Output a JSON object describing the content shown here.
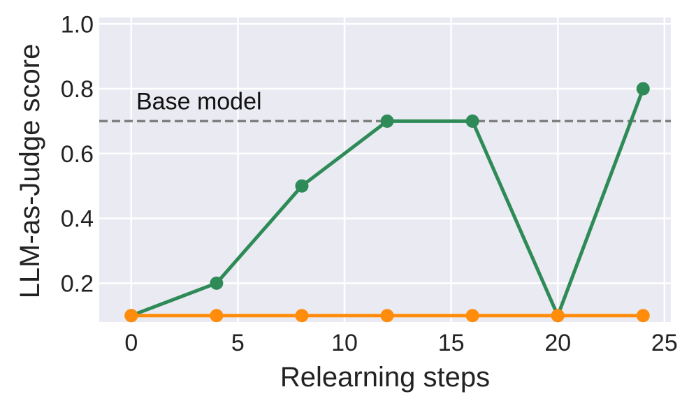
{
  "chart_data": {
    "type": "line",
    "xlabel": "Relearning steps",
    "ylabel": "LLM-as-Judge score",
    "xlim": [
      -1.5,
      25.3
    ],
    "ylim": [
      0.08,
      1.02
    ],
    "xticks": [
      0,
      5,
      10,
      15,
      20,
      25
    ],
    "yticks": [
      0.2,
      0.4,
      0.6,
      0.8,
      1.0
    ],
    "xtick_labels": [
      "0",
      "5",
      "10",
      "15",
      "20",
      "25"
    ],
    "ytick_labels": [
      "0.2",
      "0.4",
      "0.6",
      "0.8",
      "1.0"
    ],
    "grid": true,
    "x": [
      0,
      4,
      8,
      12,
      16,
      20,
      24
    ],
    "series": [
      {
        "values": [
          0.1,
          0.2,
          0.5,
          0.7,
          0.7,
          0.1,
          0.8
        ],
        "color": "#2e8b57"
      },
      {
        "values": [
          0.1,
          0.1,
          0.1,
          0.1,
          0.1,
          0.1,
          0.1
        ],
        "color": "#ff8c0a"
      }
    ],
    "reference_line": {
      "y": 0.7,
      "label": "Base model",
      "color": "#808080",
      "style": "dashed"
    },
    "background": "#eaeaf2"
  }
}
